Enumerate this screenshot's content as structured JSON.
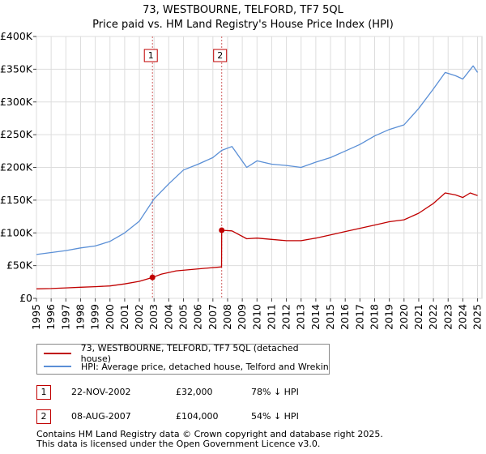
{
  "title_line1": "73, WESTBOURNE, TELFORD, TF7 5QL",
  "title_line2": "Price paid vs. HM Land Registry's House Price Index (HPI)",
  "chart_data": {
    "type": "line",
    "title": "73, WESTBOURNE, TELFORD, TF7 5QL — Price paid vs. HM Land Registry's House Price Index (HPI)",
    "xlabel": "",
    "ylabel": "",
    "xlim": [
      1995.0,
      2025.3
    ],
    "ylim": [
      0,
      400000
    ],
    "x_ticks": [
      1995,
      1996,
      1997,
      1998,
      1999,
      2000,
      2001,
      2002,
      2003,
      2004,
      2005,
      2006,
      2007,
      2008,
      2009,
      2010,
      2011,
      2012,
      2013,
      2014,
      2015,
      2016,
      2017,
      2018,
      2019,
      2020,
      2021,
      2022,
      2023,
      2024,
      2025
    ],
    "y_ticks": [
      0,
      50000,
      100000,
      150000,
      200000,
      250000,
      300000,
      350000,
      400000
    ],
    "y_tick_labels": [
      "£0",
      "£50K",
      "£100K",
      "£150K",
      "£200K",
      "£250K",
      "£300K",
      "£350K",
      "£400K"
    ],
    "grid": true,
    "series": [
      {
        "name": "73, WESTBOURNE, TELFORD, TF7 5QL (detached house)",
        "color": "#c00000",
        "points": [
          [
            1995.0,
            14500
          ],
          [
            1996.0,
            15000
          ],
          [
            1997.0,
            16000
          ],
          [
            1998.0,
            17000
          ],
          [
            1999.0,
            17800
          ],
          [
            2000.0,
            19000
          ],
          [
            2001.0,
            22000
          ],
          [
            2002.0,
            26000
          ],
          [
            2002.89,
            32000
          ],
          [
            2003.5,
            37000
          ],
          [
            2004.5,
            42000
          ],
          [
            2005.5,
            44000
          ],
          [
            2006.5,
            46000
          ],
          [
            2007.59,
            48000
          ],
          [
            2007.6,
            104000
          ],
          [
            2008.3,
            103000
          ],
          [
            2009.3,
            91000
          ],
          [
            2010.0,
            92000
          ],
          [
            2011.0,
            90000
          ],
          [
            2012.0,
            88000
          ],
          [
            2013.0,
            88000
          ],
          [
            2014.0,
            92000
          ],
          [
            2015.0,
            97000
          ],
          [
            2016.0,
            102000
          ],
          [
            2017.0,
            107000
          ],
          [
            2018.0,
            112000
          ],
          [
            2019.0,
            117000
          ],
          [
            2020.0,
            120000
          ],
          [
            2021.0,
            130000
          ],
          [
            2022.0,
            145000
          ],
          [
            2022.8,
            161000
          ],
          [
            2023.5,
            158000
          ],
          [
            2024.0,
            154000
          ],
          [
            2024.5,
            161000
          ],
          [
            2025.0,
            157000
          ]
        ]
      },
      {
        "name": "HPI: Average price, detached house, Telford and Wrekin",
        "color": "#5a8fd6",
        "points": [
          [
            1995.0,
            67000
          ],
          [
            1996.0,
            70000
          ],
          [
            1997.0,
            73000
          ],
          [
            1998.0,
            77000
          ],
          [
            1999.0,
            80000
          ],
          [
            2000.0,
            87000
          ],
          [
            2001.0,
            100000
          ],
          [
            2002.0,
            118000
          ],
          [
            2003.0,
            152000
          ],
          [
            2004.0,
            175000
          ],
          [
            2005.0,
            196000
          ],
          [
            2006.0,
            205000
          ],
          [
            2007.0,
            215000
          ],
          [
            2007.6,
            226000
          ],
          [
            2008.3,
            232000
          ],
          [
            2009.3,
            200000
          ],
          [
            2010.0,
            210000
          ],
          [
            2011.0,
            205000
          ],
          [
            2012.0,
            203000
          ],
          [
            2013.0,
            200000
          ],
          [
            2014.0,
            208000
          ],
          [
            2015.0,
            215000
          ],
          [
            2016.0,
            225000
          ],
          [
            2017.0,
            235000
          ],
          [
            2018.0,
            248000
          ],
          [
            2019.0,
            258000
          ],
          [
            2020.0,
            265000
          ],
          [
            2021.0,
            290000
          ],
          [
            2022.0,
            320000
          ],
          [
            2022.8,
            345000
          ],
          [
            2023.5,
            340000
          ],
          [
            2024.0,
            335000
          ],
          [
            2024.7,
            355000
          ],
          [
            2025.0,
            345000
          ]
        ]
      }
    ],
    "annotations": [
      {
        "label": "1",
        "x": 2002.89,
        "y": 32000
      },
      {
        "label": "2",
        "x": 2007.6,
        "y": 104000
      }
    ]
  },
  "legend": {
    "items": [
      {
        "label": "73, WESTBOURNE, TELFORD, TF7 5QL (detached house)",
        "color": "#c00000"
      },
      {
        "label": "HPI: Average price, detached house, Telford and Wrekin",
        "color": "#5a8fd6"
      }
    ]
  },
  "transactions": [
    {
      "num": "1",
      "date": "22-NOV-2002",
      "price": "£32,000",
      "hpi": "78% ↓ HPI"
    },
    {
      "num": "2",
      "date": "08-AUG-2007",
      "price": "£104,000",
      "hpi": "54% ↓ HPI"
    }
  ],
  "footer_line1": "Contains HM Land Registry data © Crown copyright and database right 2025.",
  "footer_line2": "This data is licensed under the Open Government Licence v3.0."
}
